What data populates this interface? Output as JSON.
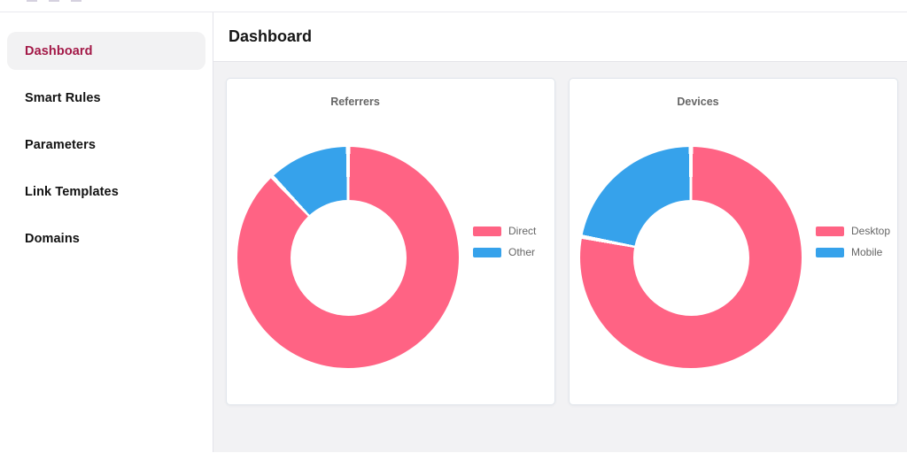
{
  "header": {
    "title": "Dashboard"
  },
  "sidebar": {
    "items": [
      {
        "label": "Dashboard",
        "active": true
      },
      {
        "label": "Smart Rules",
        "active": false
      },
      {
        "label": "Parameters",
        "active": false
      },
      {
        "label": "Link Templates",
        "active": false
      },
      {
        "label": "Domains",
        "active": false
      }
    ],
    "active_text_color": "#a31947",
    "active_bg_color": "#f2f2f3"
  },
  "colors": {
    "series_pink": "#FF6384",
    "series_blue": "#36A2EB",
    "chart_text": "#666666"
  },
  "chart_data": [
    {
      "type": "pie",
      "variant": "donut",
      "title": "Referrers",
      "labels": [
        "Direct",
        "Other"
      ],
      "values": [
        88,
        12
      ],
      "colors": [
        "#FF6384",
        "#36A2EB"
      ],
      "legend_position": "right",
      "cutout_percent": 52
    },
    {
      "type": "pie",
      "variant": "donut",
      "title": "Devices",
      "labels": [
        "Desktop",
        "Mobile"
      ],
      "values": [
        78,
        22
      ],
      "colors": [
        "#FF6384",
        "#36A2EB"
      ],
      "legend_position": "right",
      "cutout_percent": 52
    }
  ]
}
